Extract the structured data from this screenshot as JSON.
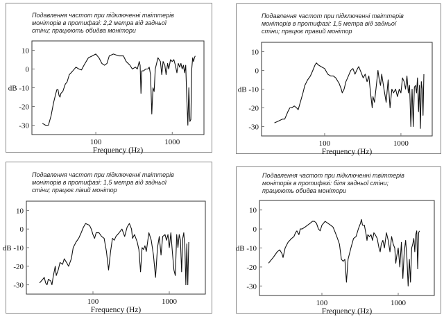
{
  "chart_data": [
    {
      "type": "line",
      "title": [
        "Подавлення частот при підключенні твіттерів",
        "моніторів в протифазі: 2,2 метра від задньої",
        "стіни; працюють обидва монітори"
      ],
      "xlabel": "Frequency (Hz)",
      "ylabel": "dB",
      "xscale": "log",
      "xlim": [
        14.6,
        2600
      ],
      "ylim": [
        -35,
        15
      ],
      "xticks": [
        100,
        1000
      ],
      "yticks": [
        10,
        0,
        -10,
        -20,
        -30
      ],
      "x": [
        20,
        22,
        24,
        26,
        28,
        30,
        31,
        32,
        33,
        34,
        35,
        37,
        40,
        42,
        45,
        50,
        55,
        60,
        65,
        70,
        80,
        90,
        100,
        110,
        120,
        130,
        140,
        150,
        170,
        200,
        230,
        250,
        280,
        300,
        330,
        350,
        370,
        380,
        390,
        400,
        420,
        450,
        480,
        500,
        520,
        540,
        560,
        580,
        600,
        650,
        700,
        730,
        760,
        800,
        830,
        870,
        900,
        950,
        1000,
        1050,
        1100,
        1150,
        1200,
        1250,
        1300,
        1350,
        1400,
        1450,
        1500,
        1550,
        1600,
        1650,
        1700,
        1750,
        1800,
        1850,
        1900,
        1950,
        2000
      ],
      "y": [
        -29,
        -30,
        -30,
        -25,
        -18,
        -13,
        -11,
        -11,
        -14,
        -15,
        -13,
        -12,
        -8,
        -7,
        -3,
        -1,
        1,
        0,
        -0.5,
        2,
        6,
        7,
        8,
        6,
        3,
        2,
        3,
        7,
        8,
        7,
        7,
        4,
        2,
        0,
        1,
        0,
        4,
        2,
        -13,
        -1,
        -1,
        0,
        0,
        1,
        -3,
        -24,
        -10,
        -12,
        0,
        6,
        4,
        -3,
        4,
        2,
        -3,
        3,
        0,
        5,
        4,
        5,
        2,
        -2,
        3,
        1,
        3,
        0,
        2,
        -2,
        2,
        -15,
        -30,
        -10,
        -28,
        -27,
        0,
        6,
        4,
        6,
        7
      ]
    },
    {
      "type": "line",
      "title": [
        "Подавлення частот при підключенні твіттерів",
        "моніторів в протифазі: 1,5 метра від задньої",
        "стіни; працює правий монітор"
      ],
      "xlabel": "Frequency (Hz)",
      "ylabel": "dB",
      "xscale": "log",
      "xlim": [
        14.9,
        2570
      ],
      "ylim": [
        -35,
        15
      ],
      "xticks": [
        100,
        1000
      ],
      "yticks": [
        10,
        0,
        -10,
        -20,
        -30
      ],
      "x": [
        22,
        25,
        28,
        30,
        33,
        35,
        37,
        40,
        43,
        45,
        48,
        52,
        55,
        60,
        65,
        70,
        75,
        78,
        82,
        90,
        100,
        110,
        120,
        130,
        140,
        155,
        165,
        170,
        180,
        190,
        200,
        220,
        235,
        250,
        270,
        280,
        300,
        320,
        340,
        360,
        380,
        400,
        420,
        430,
        450,
        470,
        500,
        520,
        540,
        560,
        600,
        640,
        680,
        720,
        760,
        800,
        850,
        900,
        950,
        1000,
        1050,
        1100,
        1150,
        1200,
        1250,
        1300,
        1350,
        1400,
        1450,
        1500,
        1550,
        1600,
        1650,
        1700,
        1750,
        1800,
        1850,
        1900,
        1950,
        2000
      ],
      "y": [
        -28,
        -27,
        -26,
        -26,
        -22,
        -20,
        -20,
        -19,
        -20,
        -21,
        -17,
        -12,
        -8,
        -5,
        -3,
        0,
        3,
        4,
        3,
        2,
        1,
        -2,
        -3,
        -3,
        -4,
        -7,
        -10,
        -12,
        -10,
        -6,
        -4,
        0,
        1,
        -2,
        1,
        2,
        -1,
        -4,
        -2,
        -6,
        -3,
        -12,
        -20,
        -14,
        -17,
        -10,
        0,
        -5,
        -8,
        -2,
        -10,
        -17,
        -5,
        -20,
        -10,
        -12,
        -10,
        -14,
        -10,
        -12,
        -4,
        -6,
        -10,
        -3,
        -12,
        -8,
        -30,
        -10,
        -30,
        -9,
        -8,
        -12,
        -4,
        -22,
        -8,
        -31,
        -6,
        -10,
        -24,
        -2
      ]
    },
    {
      "type": "line",
      "title": [
        "Подавлення частот при підключенні твіттерів",
        "моніторів в протифазі: 1,5 метра від задньої",
        "стіни; працює лівий монітор"
      ],
      "xlabel": "Frequency (Hz)",
      "ylabel": "dB",
      "xscale": "log",
      "xlim": [
        13.4,
        2970
      ],
      "ylim": [
        -35,
        15
      ],
      "xticks": [
        100,
        1000
      ],
      "yticks": [
        10,
        0,
        -10,
        -20,
        -30
      ],
      "x": [
        20,
        22,
        23,
        24,
        25,
        26,
        28,
        29,
        30,
        32,
        33,
        35,
        37,
        40,
        42,
        45,
        48,
        52,
        55,
        60,
        65,
        70,
        75,
        80,
        85,
        90,
        95,
        100,
        105,
        110,
        120,
        130,
        140,
        150,
        160,
        170,
        180,
        190,
        200,
        220,
        240,
        260,
        280,
        300,
        320,
        330,
        350,
        380,
        400,
        420,
        440,
        460,
        480,
        500,
        540,
        580,
        620,
        660,
        700,
        740,
        780,
        820,
        880,
        920,
        960,
        1000,
        1050,
        1100,
        1150,
        1200,
        1250,
        1300,
        1350,
        1400,
        1450,
        1500,
        1550,
        1600,
        1650,
        1700,
        1750,
        1800
      ],
      "y": [
        -29,
        -27,
        -26,
        -29,
        -30,
        -27,
        -28,
        -30,
        -26,
        -20,
        -25,
        -22,
        -18,
        -19,
        -16,
        -18,
        -20,
        -16,
        -10,
        -7,
        -5,
        -2,
        1,
        3,
        2.5,
        2,
        0,
        -3,
        -5,
        -2,
        -2,
        -4,
        -5,
        -12,
        -22,
        -12,
        -5,
        -6,
        -4,
        -2,
        0,
        -4,
        1,
        3,
        0,
        -5,
        -3,
        -7,
        -11,
        -23,
        -10,
        -11,
        -9,
        -12,
        -2,
        -6,
        -14,
        -26,
        -10,
        -4,
        -14,
        -4,
        -3,
        -6,
        -3,
        -10,
        -2,
        -13,
        -22,
        -25,
        -3,
        -10,
        -3,
        -6,
        -23,
        -5,
        -2,
        -10,
        -30,
        -8,
        -30,
        -7
      ]
    },
    {
      "type": "line",
      "title": [
        "Подавлення частот при підключенні твіттерів",
        "моніторів в протифазі: біля задньої стіни;",
        "працюють обидва монітори"
      ],
      "xlabel": "Frequency (Hz)",
      "ylabel": "dB",
      "xscale": "log",
      "xlim": [
        15.2,
        2970
      ],
      "ylim": [
        -35,
        15
      ],
      "xticks": [
        100,
        1000
      ],
      "yticks": [
        10,
        0,
        -10,
        -20,
        -30
      ],
      "x": [
        20,
        23,
        26,
        28,
        30,
        31,
        33,
        36,
        40,
        43,
        45,
        47,
        50,
        52,
        55,
        60,
        65,
        70,
        75,
        80,
        85,
        90,
        95,
        100,
        110,
        120,
        130,
        140,
        150,
        160,
        170,
        180,
        190,
        200,
        210,
        220,
        240,
        260,
        280,
        300,
        320,
        330,
        340,
        360,
        380,
        390,
        400,
        420,
        440,
        460,
        480,
        500,
        530,
        560,
        580,
        600,
        630,
        660,
        700,
        740,
        780,
        820,
        860,
        900,
        930,
        960,
        1000,
        1050,
        1100,
        1150,
        1200,
        1250,
        1300,
        1350,
        1400,
        1450,
        1500,
        1550,
        1600,
        1650,
        1700,
        1750,
        1800,
        1850,
        1900
      ],
      "y": [
        -18,
        -15,
        -12,
        -11,
        -13,
        -15,
        -10,
        -7,
        -5,
        -4,
        -2,
        -1,
        -3,
        0,
        0,
        1,
        2,
        3,
        4,
        4,
        3,
        0,
        -1,
        2,
        4,
        3,
        2,
        1,
        -2,
        -5,
        -8,
        -16,
        -17,
        -16,
        -28,
        -16,
        -10,
        -5,
        -4,
        0,
        3,
        5,
        2,
        2,
        -3,
        -6,
        -3,
        -4,
        -3,
        -6,
        -2,
        -3,
        -5,
        -10,
        -12,
        -8,
        -6,
        -10,
        -2,
        -6,
        -12,
        -4,
        -8,
        -10,
        -18,
        -14,
        -10,
        -20,
        -7,
        -26,
        -12,
        -6,
        -15,
        -30,
        -16,
        -28,
        -10,
        -8,
        -5,
        -12,
        -3,
        -1,
        -21,
        -2,
        -1
      ]
    }
  ]
}
